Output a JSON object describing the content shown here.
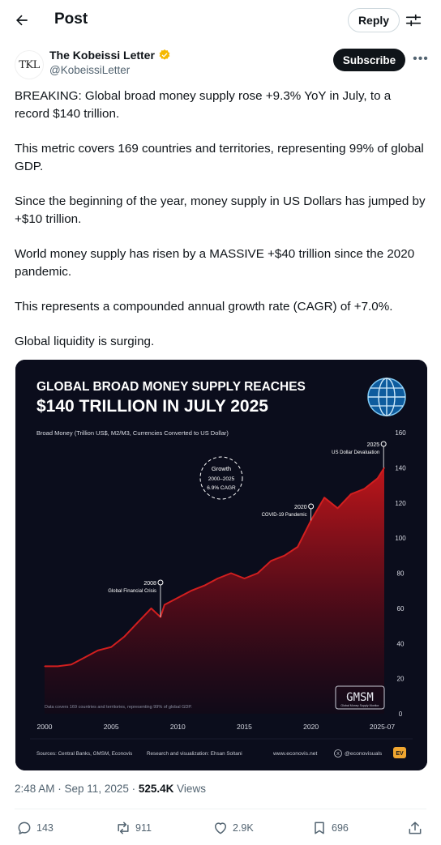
{
  "header": {
    "title": "Post",
    "reply_label": "Reply"
  },
  "author": {
    "avatar_text": "TKL",
    "name": "The Kobeissi Letter",
    "handle": "@KobeissiLetter",
    "subscribe_label": "Subscribe"
  },
  "tweet": {
    "paragraphs": [
      "BREAKING: Global broad money supply rose +9.3% YoY in July, to a record $140 trillion.",
      "This metric covers 169 countries and territories, representing 99% of global GDP.",
      "Since the beginning of the year, money supply in US Dollars has jumped by +$10 trillion.",
      "World money supply has risen by a MASSIVE +$40 trillion since the 2020 pandemic.",
      "This represents a compounded annual growth rate (CAGR) of +7.0%.",
      "Global liquidity is surging."
    ]
  },
  "meta": {
    "time": "2:48 AM",
    "date": "Sep 11, 2025",
    "views": "525.4K",
    "views_label": "Views"
  },
  "actions": {
    "replies": "143",
    "reposts": "911",
    "likes": "2.9K",
    "bookmarks": "696"
  },
  "colors": {
    "accent_gold": "#f5b800",
    "chart_bg": "#0b0d1c",
    "chart_line": "#d21f1f"
  },
  "icons": [
    "back-arrow-icon",
    "filter-icon",
    "verified-badge-icon",
    "more-icon",
    "globe-icon",
    "reply-icon",
    "repost-icon",
    "like-icon",
    "bookmark-icon",
    "share-icon"
  ],
  "chart_data": {
    "type": "area",
    "title_line1": "GLOBAL BROAD MONEY SUPPLY REACHES",
    "title_line2": "$140 TRILLION IN JULY 2025",
    "ylabel": "Broad Money (Trillion US$, M2/M3, Currencies Converted to US Dollar)",
    "ylim": [
      0,
      160
    ],
    "yticks": [
      "0",
      "20",
      "40",
      "60",
      "80",
      "100",
      "120",
      "140",
      "160"
    ],
    "xlim": [
      2000,
      2025.5
    ],
    "xticks": [
      "2000",
      "2005",
      "2010",
      "2015",
      "2020",
      "2025-07"
    ],
    "growth_badge": [
      "Growth",
      "2000–2025",
      "6.9% CAGR"
    ],
    "annotations": [
      {
        "year": "2008",
        "label": "Global Financial Crisis"
      },
      {
        "year": "2020",
        "label": "COVID-19 Pandemic"
      },
      {
        "year": "2025",
        "label": "US Dollar Devaluation"
      }
    ],
    "footnote": "Data covers 169 countries and territories, representing 99% of global GDP.",
    "logo_text": "GMSM",
    "logo_sub": "Global Money Supply Monitor",
    "footer": {
      "sources": "Sources: Central Banks, GMSM, Econovis",
      "research": "Research and visualization: Ehsan Soltani",
      "site": "www.econovis.net",
      "social": "@econovisuals",
      "badge": "EV"
    },
    "series": [
      {
        "x": [
          2000,
          2001,
          2002,
          2003,
          2004,
          2005,
          2006,
          2007,
          2008,
          2008.7,
          2009,
          2010,
          2011,
          2012,
          2013,
          2014,
          2015,
          2016,
          2017,
          2018,
          2019,
          2020,
          2021,
          2022,
          2023,
          2024,
          2025,
          2025.5
        ],
        "values": [
          27,
          27,
          28,
          32,
          36,
          38,
          44,
          52,
          60,
          55,
          62,
          66,
          70,
          73,
          77,
          80,
          77,
          80,
          87,
          90,
          95,
          110,
          123,
          117,
          125,
          128,
          134,
          140
        ]
      }
    ]
  }
}
